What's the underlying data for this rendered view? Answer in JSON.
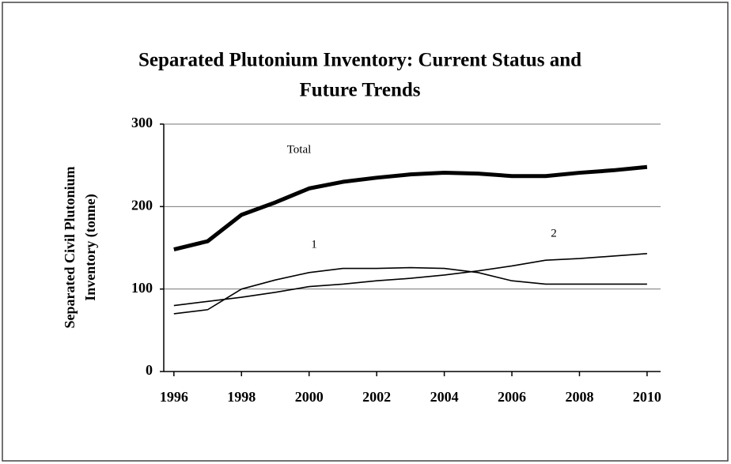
{
  "chart_data": {
    "type": "line",
    "title": [
      "Separated Plutonium Inventory: Current Status and",
      "Future Trends"
    ],
    "ylabel": [
      "Separated Civil Plutonium",
      "Inventory (tonne)"
    ],
    "x": [
      1996,
      1997,
      1998,
      1999,
      2000,
      2001,
      2002,
      2003,
      2004,
      2005,
      2006,
      2007,
      2008,
      2009,
      2010
    ],
    "series": [
      {
        "name": "Total",
        "color": "#000000",
        "values": [
          148,
          158,
          190,
          205,
          222,
          230,
          235,
          239,
          241,
          240,
          237,
          237,
          241,
          244,
          248
        ]
      },
      {
        "name": "1",
        "color": "#000000",
        "values": [
          70,
          75,
          100,
          111,
          120,
          125,
          125,
          126,
          125,
          120,
          110,
          106,
          106,
          106,
          106
        ]
      },
      {
        "name": "2",
        "color": "#000000",
        "values": [
          80,
          85,
          90,
          96,
          103,
          106,
          110,
          113,
          117,
          122,
          128,
          135,
          137,
          140,
          143
        ]
      }
    ],
    "xlim": [
      1995.7,
      2010.4
    ],
    "xticks": [
      1996,
      1998,
      2000,
      2002,
      2004,
      2006,
      2008,
      2010
    ],
    "ylim": [
      0,
      300
    ],
    "yticks": [
      0,
      100,
      200,
      300
    ],
    "grid": true
  }
}
